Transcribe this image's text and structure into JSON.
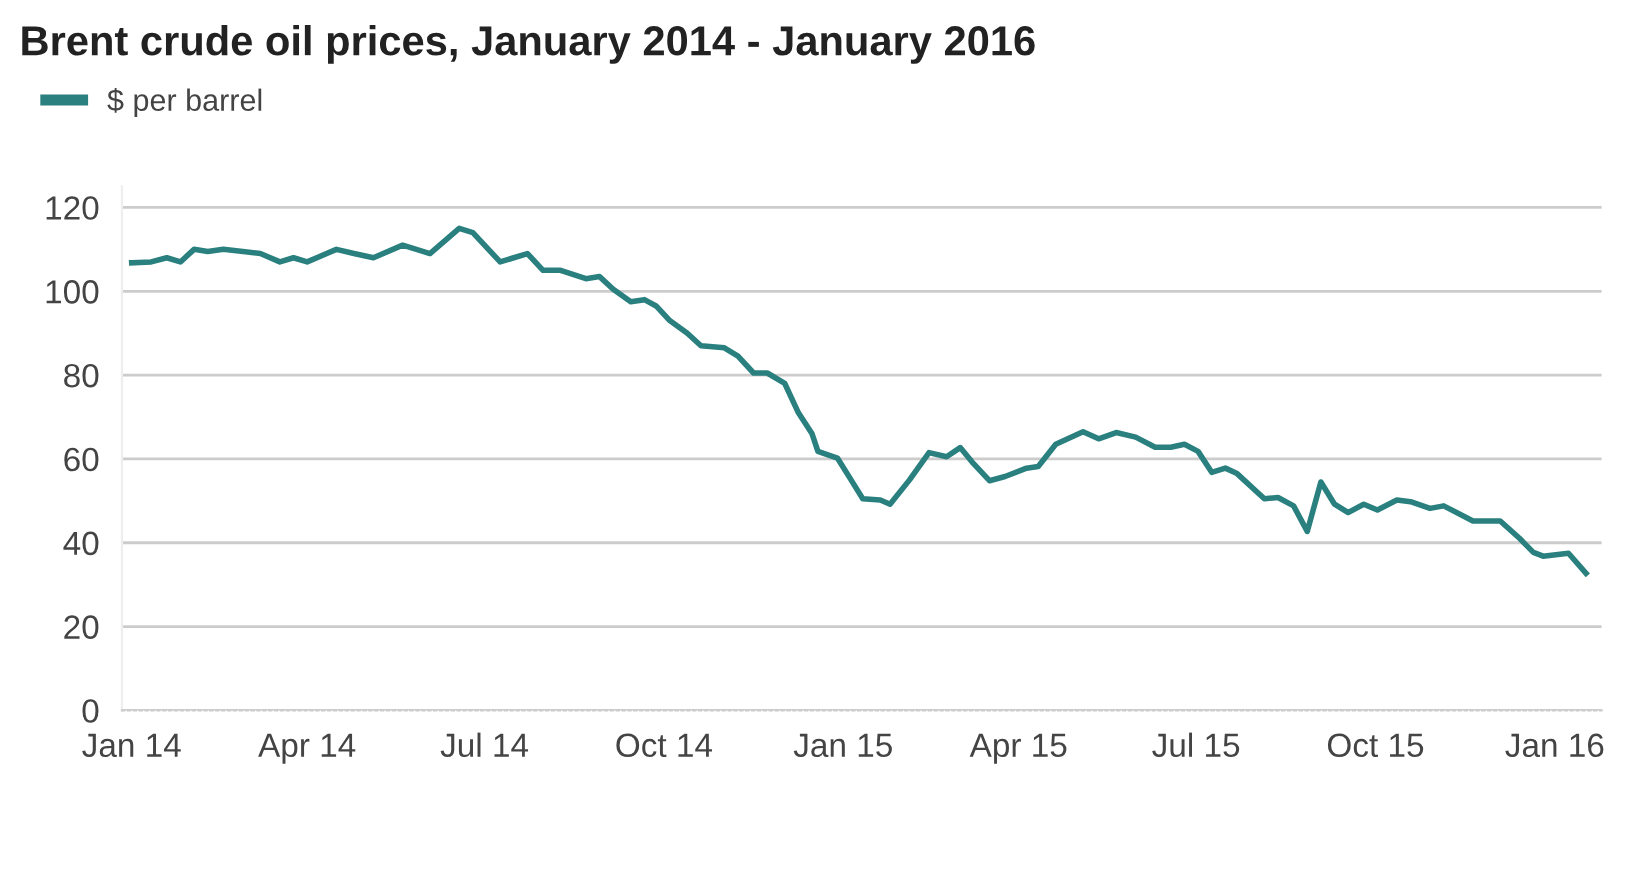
{
  "chart_data": {
    "type": "line",
    "title": "Brent crude oil prices, January 2014 - January 2016",
    "x": [
      "2014-01-01",
      "2014-01-11",
      "2014-01-19",
      "2014-01-26",
      "2014-02-02",
      "2014-02-09",
      "2014-02-17",
      "2014-03-08",
      "2014-03-18",
      "2014-03-25",
      "2014-04-01",
      "2014-04-16",
      "2014-04-25",
      "2014-05-05",
      "2014-05-20",
      "2014-06-03",
      "2014-06-18",
      "2014-06-25",
      "2014-07-09",
      "2014-07-16",
      "2014-07-23",
      "2014-07-31",
      "2014-08-09",
      "2014-08-22",
      "2014-08-29",
      "2014-09-05",
      "2014-09-14",
      "2014-09-21",
      "2014-09-27",
      "2014-10-04",
      "2014-10-13",
      "2014-10-20",
      "2014-11-01",
      "2014-11-08",
      "2014-11-16",
      "2014-11-23",
      "2014-12-02",
      "2014-12-09",
      "2014-12-16",
      "2014-12-19",
      "2014-12-29",
      "2015-01-05",
      "2015-01-11",
      "2015-01-20",
      "2015-01-25",
      "2015-02-04",
      "2015-02-14",
      "2015-02-23",
      "2015-03-02",
      "2015-03-08",
      "2015-03-17",
      "2015-03-25",
      "2015-04-05",
      "2015-04-11",
      "2015-04-20",
      "2015-05-04",
      "2015-05-12",
      "2015-05-21",
      "2015-05-31",
      "2015-06-10",
      "2015-06-18",
      "2015-06-25",
      "2015-07-02",
      "2015-07-09",
      "2015-07-16",
      "2015-07-22",
      "2015-08-05",
      "2015-08-12",
      "2015-08-20",
      "2015-08-27",
      "2015-09-03",
      "2015-09-10",
      "2015-09-17",
      "2015-09-25",
      "2015-10-02",
      "2015-10-12",
      "2015-10-19",
      "2015-10-29",
      "2015-11-05",
      "2015-11-20",
      "2015-12-04",
      "2015-12-14",
      "2015-12-21",
      "2015-12-26",
      "2016-01-08",
      "2016-01-17"
    ],
    "series": [
      {
        "name": "$ per barrel",
        "color": "#2a7f7f",
        "values": [
          106.8,
          107,
          108,
          107,
          110,
          109.5,
          110,
          109,
          107,
          108,
          107,
          110,
          109,
          108,
          111,
          109,
          115,
          114,
          107,
          108,
          109,
          105,
          105,
          103,
          103.5,
          100.5,
          97.5,
          98,
          96.5,
          93,
          90,
          87,
          86.5,
          84.5,
          80.5,
          80.5,
          78,
          71,
          66,
          61.8,
          60.2,
          55,
          50.5,
          50.2,
          49.2,
          55,
          61.5,
          60.5,
          62.7,
          59.3,
          54.8,
          55.8,
          57.8,
          58.2,
          63.5,
          66.5,
          64.8,
          66.3,
          65.2,
          62.8,
          62.8,
          63.5,
          61.8,
          56.8,
          57.8,
          56.5,
          50.5,
          50.8,
          48.8,
          42.7,
          54.5,
          49.2,
          47.2,
          49.2,
          47.8,
          50.2,
          49.8,
          48.2,
          48.8,
          45.2,
          45.2,
          41,
          37.7,
          36.8,
          37.5,
          32.7
        ]
      }
    ],
    "xlim": [
      "2013-12-27",
      "2016-01-25"
    ],
    "xticks": [
      {
        "value": "2014-01-01",
        "label": "Jan 14"
      },
      {
        "value": "2014-04-01",
        "label": "Apr 14"
      },
      {
        "value": "2014-07-01",
        "label": "Jul 14"
      },
      {
        "value": "2014-10-01",
        "label": "Oct 14"
      },
      {
        "value": "2015-01-01",
        "label": "Jan 15"
      },
      {
        "value": "2015-04-01",
        "label": "Apr 15"
      },
      {
        "value": "2015-07-01",
        "label": "Jul 15"
      },
      {
        "value": "2015-10-01",
        "label": "Oct 15"
      },
      {
        "value": "2016-01-01",
        "label": "Jan 16"
      }
    ],
    "ylim": [
      0,
      125
    ],
    "yticks": [
      0,
      20,
      40,
      60,
      80,
      100,
      120
    ],
    "grid": "y",
    "legend": "top left",
    "line_style": "solid",
    "marker": "none"
  }
}
